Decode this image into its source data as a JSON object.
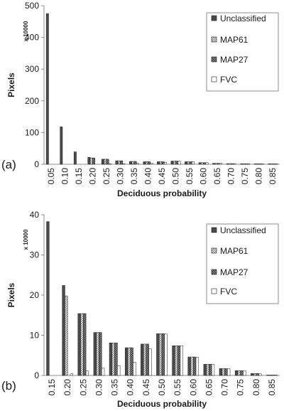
{
  "chart_data": [
    {
      "type": "bar",
      "panel_label": "(a)",
      "xlabel": "Deciduous probability",
      "ylabel": "Pixels",
      "unit_label": "x 10000",
      "ylim": [
        0,
        500
      ],
      "yticks": [
        "0",
        "100",
        "200",
        "300",
        "400",
        "500"
      ],
      "grid": false,
      "legend_position": "top-right",
      "categories": [
        "0.05",
        "0.10",
        "0.15",
        "0.20",
        "0.25",
        "0.30",
        "0.35",
        "0.40",
        "0.45",
        "0.50",
        "0.55",
        "0.60",
        "0.65",
        "0.70",
        "0.75",
        "0.80",
        "0.85"
      ],
      "series": [
        {
          "name": "Unclassified",
          "values": [
            475,
            118,
            39,
            22,
            16,
            11,
            9,
            8,
            8,
            10,
            8,
            5,
            3,
            2,
            1.5,
            1,
            0.5
          ]
        },
        {
          "name": "MAP61",
          "values": [
            0,
            0,
            0,
            20,
            16,
            11,
            9,
            8,
            8,
            10,
            8,
            5,
            3,
            2,
            1.5,
            1,
            0.5
          ]
        },
        {
          "name": "MAP27",
          "values": [
            0,
            0,
            0,
            20,
            16,
            11,
            9,
            8,
            8,
            10,
            8,
            5,
            3,
            2,
            1.5,
            1,
            0.5
          ]
        },
        {
          "name": "FVC",
          "values": [
            0,
            0,
            0,
            0,
            1,
            2,
            3,
            4,
            6,
            10,
            8,
            5,
            3,
            2,
            1.5,
            1,
            0.5
          ]
        }
      ]
    },
    {
      "type": "bar",
      "panel_label": "(b)",
      "xlabel": "Deciduous probability",
      "ylabel": "Pixels",
      "unit_label": "x 10000",
      "ylim": [
        0,
        40
      ],
      "yticks": [
        "0",
        "10",
        "20",
        "30",
        "40"
      ],
      "grid": false,
      "legend_position": "top-right",
      "categories": [
        "0.15",
        "0.20",
        "0.25",
        "0.30",
        "0.35",
        "0.40",
        "0.45",
        "0.50",
        "0.55",
        "0.60",
        "0.65",
        "0.70",
        "0.75",
        "0.80",
        "0.85"
      ],
      "series": [
        {
          "name": "Unclassified",
          "values": [
            38.3,
            22.4,
            15.4,
            10.7,
            8.1,
            6.9,
            7.8,
            10.4,
            7.4,
            4.6,
            2.8,
            1.7,
            1.2,
            0.5,
            0.1
          ]
        },
        {
          "name": "MAP61",
          "values": [
            0,
            19.8,
            15.4,
            10.7,
            8.1,
            6.9,
            7.8,
            10.4,
            7.4,
            4.6,
            2.8,
            1.7,
            1.2,
            0.5,
            0.1
          ]
        },
        {
          "name": "MAP27",
          "values": [
            0,
            0,
            15.4,
            10.7,
            8.1,
            6.9,
            7.8,
            10.4,
            7.4,
            4.6,
            2.8,
            1.7,
            1.2,
            0.5,
            0.1
          ]
        },
        {
          "name": "FVC",
          "values": [
            0,
            0.4,
            1.1,
            1.8,
            2.4,
            3.3,
            6.6,
            10.3,
            7.4,
            4.5,
            2.8,
            1.7,
            1.2,
            0.4,
            0.1
          ]
        }
      ]
    }
  ],
  "series_styles": [
    {
      "fill": "#4a4a4a",
      "pattern": "solid"
    },
    {
      "fill": "#d9d9d9",
      "pattern": "hatch-light"
    },
    {
      "fill": "#5a5a5a",
      "pattern": "checker-dark"
    },
    {
      "fill": "#ffffff",
      "pattern": "none"
    }
  ]
}
